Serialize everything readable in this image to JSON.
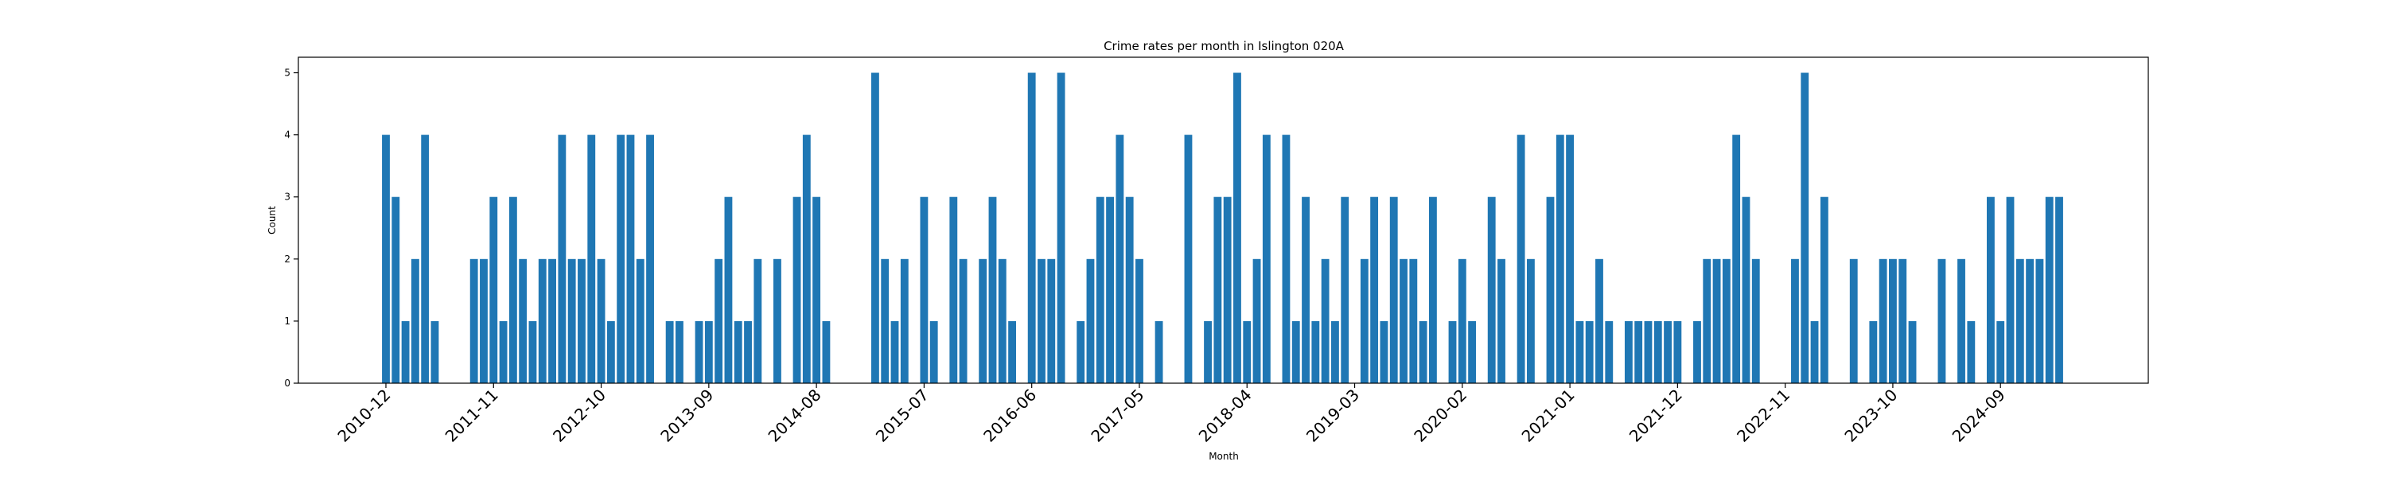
{
  "chart_data": {
    "type": "bar",
    "title": "Crime rates per month in Islington 020A",
    "xlabel": "Month",
    "ylabel": "Count",
    "ylim": [
      0,
      5.25
    ],
    "yticks": [
      0,
      1,
      2,
      3,
      4,
      5
    ],
    "grid": false,
    "bar_color": "#1f77b4",
    "x_start": "2010-12",
    "x_end": "2025-03",
    "xticks": [
      "2010-12",
      "2011-11",
      "2012-10",
      "2013-09",
      "2014-08",
      "2015-07",
      "2016-06",
      "2017-05",
      "2018-04",
      "2019-03",
      "2020-02",
      "2021-01",
      "2021-12",
      "2022-11",
      "2023-10",
      "2024-09"
    ],
    "categories": [
      "2010-12",
      "2011-01",
      "2011-02",
      "2011-03",
      "2011-04",
      "2011-05",
      "2011-09",
      "2011-10",
      "2011-11",
      "2011-12",
      "2012-01",
      "2012-02",
      "2012-03",
      "2012-04",
      "2012-05",
      "2012-06",
      "2012-07",
      "2012-08",
      "2012-09",
      "2012-10",
      "2012-11",
      "2012-12",
      "2013-01",
      "2013-02",
      "2013-03",
      "2013-05",
      "2013-06",
      "2013-08",
      "2013-09",
      "2013-10",
      "2013-11",
      "2013-12",
      "2014-01",
      "2014-02",
      "2014-04",
      "2014-06",
      "2014-07",
      "2014-08",
      "2014-09",
      "2015-02",
      "2015-03",
      "2015-04",
      "2015-05",
      "2015-07",
      "2015-08",
      "2015-10",
      "2015-11",
      "2016-01",
      "2016-02",
      "2016-03",
      "2016-04",
      "2016-06",
      "2016-07",
      "2016-08",
      "2016-09",
      "2016-11",
      "2016-12",
      "2017-01",
      "2017-02",
      "2017-03",
      "2017-04",
      "2017-05",
      "2017-07",
      "2017-10",
      "2017-12",
      "2018-01",
      "2018-02",
      "2018-03",
      "2018-04",
      "2018-05",
      "2018-06",
      "2018-08",
      "2018-09",
      "2018-10",
      "2018-11",
      "2018-12",
      "2019-01",
      "2019-02",
      "2019-04",
      "2019-05",
      "2019-06",
      "2019-07",
      "2019-08",
      "2019-09",
      "2019-10",
      "2019-11",
      "2020-01",
      "2020-02",
      "2020-03",
      "2020-05",
      "2020-06",
      "2020-08",
      "2020-09",
      "2020-11",
      "2020-12",
      "2021-01",
      "2021-02",
      "2021-03",
      "2021-04",
      "2021-05",
      "2021-07",
      "2021-08",
      "2021-09",
      "2021-10",
      "2021-11",
      "2021-12",
      "2022-02",
      "2022-03",
      "2022-04",
      "2022-05",
      "2022-06",
      "2022-07",
      "2022-08",
      "2022-12",
      "2023-01",
      "2023-02",
      "2023-03",
      "2023-06",
      "2023-08",
      "2023-09",
      "2023-10",
      "2023-11",
      "2023-12",
      "2024-03",
      "2024-05",
      "2024-06",
      "2024-08",
      "2024-09",
      "2024-10",
      "2024-11",
      "2024-12",
      "2025-01",
      "2025-02",
      "2025-03"
    ],
    "values": [
      4,
      3,
      1,
      2,
      4,
      1,
      2,
      2,
      3,
      1,
      3,
      2,
      1,
      2,
      2,
      4,
      2,
      2,
      4,
      2,
      1,
      4,
      4,
      2,
      4,
      1,
      1,
      1,
      1,
      2,
      3,
      1,
      1,
      2,
      2,
      3,
      4,
      3,
      1,
      5,
      2,
      1,
      2,
      3,
      1,
      3,
      2,
      2,
      3,
      2,
      1,
      5,
      2,
      2,
      5,
      1,
      2,
      3,
      3,
      4,
      3,
      2,
      1,
      4,
      1,
      3,
      3,
      5,
      1,
      2,
      4,
      4,
      1,
      3,
      1,
      2,
      1,
      3,
      2,
      3,
      1,
      3,
      2,
      2,
      1,
      3,
      1,
      2,
      1,
      3,
      2,
      4,
      2,
      3,
      4,
      4,
      1,
      1,
      2,
      1,
      1,
      1,
      1,
      1,
      1,
      1,
      1,
      2,
      2,
      2,
      4,
      3,
      2,
      2,
      5,
      1,
      3,
      2,
      1,
      2,
      2,
      2,
      1,
      2,
      2,
      1,
      3,
      1,
      3,
      2,
      2,
      2,
      3,
      3
    ]
  }
}
